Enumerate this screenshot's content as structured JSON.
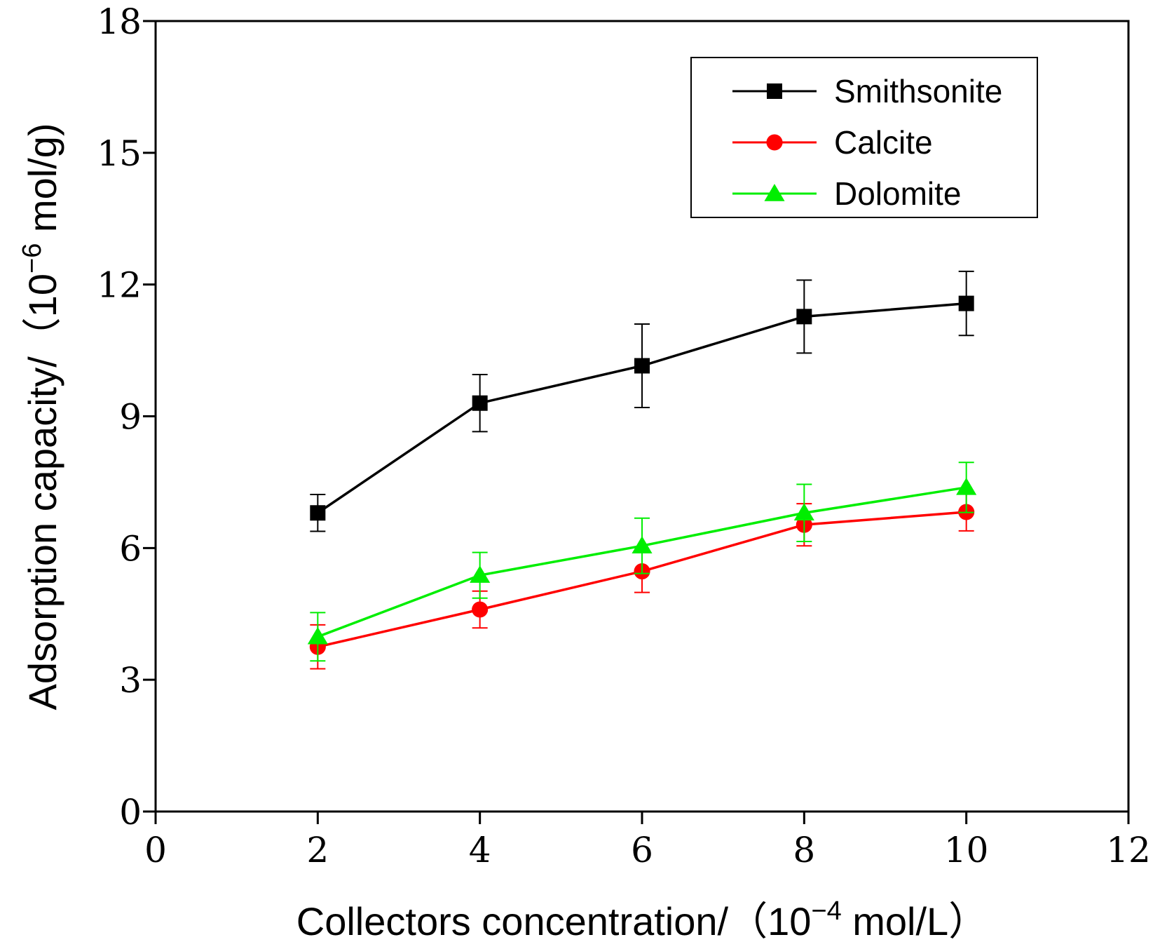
{
  "chart_data": {
    "type": "line",
    "title": "",
    "xlabel": {
      "main": "Collectors concentration/（10",
      "exponent": "−4",
      "unit": " mol/L）"
    },
    "ylabel": {
      "main": "Adsorption capacity/（10",
      "exponent": "−6",
      "unit": " mol/g)"
    },
    "xlim": [
      0,
      12
    ],
    "ylim": [
      0,
      18
    ],
    "xticks": [
      0,
      2,
      4,
      6,
      8,
      10,
      12
    ],
    "yticks": [
      0,
      3,
      6,
      9,
      12,
      15,
      18
    ],
    "grid": false,
    "legend_position": "top-right",
    "x": [
      2,
      4,
      6,
      8,
      10
    ],
    "series": [
      {
        "name": "Smithsonite",
        "color": "#000000",
        "marker": "square",
        "values": [
          6.8,
          9.3,
          10.15,
          11.27,
          11.57
        ],
        "errors": [
          0.42,
          0.65,
          0.95,
          0.83,
          0.73
        ]
      },
      {
        "name": "Calcite",
        "color": "#ff0000",
        "marker": "circle",
        "values": [
          3.75,
          4.6,
          5.47,
          6.53,
          6.82
        ],
        "errors": [
          0.5,
          0.42,
          0.48,
          0.48,
          0.43
        ]
      },
      {
        "name": "Dolomite",
        "color": "#00ee00",
        "marker": "triangle",
        "values": [
          3.98,
          5.38,
          6.05,
          6.8,
          7.38
        ],
        "errors": [
          0.55,
          0.52,
          0.63,
          0.65,
          0.57
        ]
      }
    ]
  }
}
